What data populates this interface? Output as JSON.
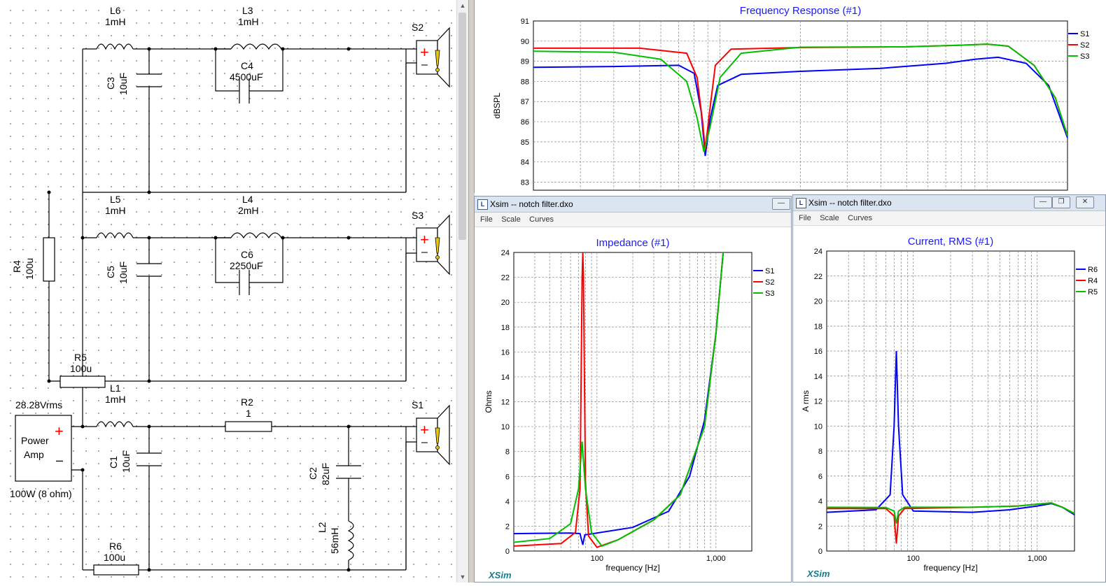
{
  "schematic": {
    "components": {
      "L6": {
        "name": "L6",
        "value": "1mH"
      },
      "L3": {
        "name": "L3",
        "value": "1mH"
      },
      "C3": {
        "name": "C3",
        "value": "10uF"
      },
      "C4": {
        "name": "C4",
        "value": "4500uF"
      },
      "S2": {
        "name": "S2"
      },
      "L5": {
        "name": "L5",
        "value": "1mH"
      },
      "L4": {
        "name": "L4",
        "value": "2mH"
      },
      "C5": {
        "name": "C5",
        "value": "10uF"
      },
      "C6": {
        "name": "C6",
        "value": "2250uF"
      },
      "S3": {
        "name": "S3"
      },
      "R4": {
        "name": "R4",
        "value": "100u"
      },
      "R5": {
        "name": "R5",
        "value": "100u"
      },
      "L1": {
        "name": "L1",
        "value": "1mH"
      },
      "R2": {
        "name": "R2",
        "value": "1"
      },
      "S1": {
        "name": "S1"
      },
      "C1": {
        "name": "C1",
        "value": "10uF"
      },
      "C2": {
        "name": "C2",
        "value": "82uF"
      },
      "L2": {
        "name": "L2",
        "value": "56mH"
      },
      "R6": {
        "name": "R6",
        "value": "100u"
      }
    },
    "amp": {
      "voltage": "28.28Vrms",
      "label_line1": "Power",
      "label_line2": "Amp",
      "rating": "100W (8 ohm)",
      "plus": "+",
      "minus": "–"
    },
    "speaker_symbols": {
      "plus": "+",
      "minus": "–",
      "warn": "!"
    }
  },
  "colors": {
    "S1": "#0000ff",
    "S2": "#ff0000",
    "S3": "#00c000",
    "R6": "#0000ff",
    "R4": "#ff0000",
    "R5": "#00c000",
    "title": "#1a1aff"
  },
  "freq_window": {
    "chart_data": {
      "type": "line",
      "title": "Frequency Response (#1)",
      "ylabel": "dBSPL",
      "x_scale": "log",
      "ylim": [
        82.6,
        91
      ],
      "yticks": [
        "91",
        "90",
        "89",
        "88",
        "87",
        "86",
        "85",
        "84",
        "83"
      ],
      "series": [
        {
          "name": "S1",
          "points": [
            [
              20,
              88.7
            ],
            [
              40,
              88.74
            ],
            [
              70,
              88.8
            ],
            [
              80,
              88.4
            ],
            [
              85,
              86.5
            ],
            [
              88,
              84.3
            ],
            [
              92,
              86.2
            ],
            [
              98,
              87.8
            ],
            [
              120,
              88.35
            ],
            [
              200,
              88.5
            ],
            [
              400,
              88.65
            ],
            [
              700,
              88.9
            ],
            [
              900,
              89.1
            ],
            [
              1100,
              89.2
            ],
            [
              1400,
              88.9
            ],
            [
              1700,
              87.8
            ],
            [
              2000,
              85.2
            ]
          ]
        },
        {
          "name": "S2",
          "points": [
            [
              20,
              89.65
            ],
            [
              50,
              89.65
            ],
            [
              75,
              89.4
            ],
            [
              82,
              88.2
            ],
            [
              86,
              86.0
            ],
            [
              88,
              84.6
            ],
            [
              91,
              86.3
            ],
            [
              96,
              88.8
            ],
            [
              110,
              89.6
            ],
            [
              200,
              89.68
            ],
            [
              500,
              89.72
            ],
            [
              800,
              89.8
            ],
            [
              1000,
              89.85
            ],
            [
              1200,
              89.75
            ],
            [
              1500,
              88.8
            ],
            [
              1800,
              87.2
            ],
            [
              2000,
              85.3
            ]
          ]
        },
        {
          "name": "S3",
          "points": [
            [
              20,
              89.5
            ],
            [
              40,
              89.45
            ],
            [
              60,
              89.1
            ],
            [
              75,
              88.0
            ],
            [
              82,
              86.2
            ],
            [
              87,
              84.5
            ],
            [
              92,
              85.8
            ],
            [
              100,
              88.2
            ],
            [
              120,
              89.4
            ],
            [
              200,
              89.7
            ],
            [
              500,
              89.72
            ],
            [
              800,
              89.8
            ],
            [
              1000,
              89.85
            ],
            [
              1200,
              89.75
            ],
            [
              1500,
              88.8
            ],
            [
              1800,
              87.2
            ],
            [
              2000,
              85.3
            ]
          ]
        }
      ]
    }
  },
  "impedance_window": {
    "title": "Xsim -- notch filter.dxo",
    "menu": [
      "File",
      "Scale",
      "Curves"
    ],
    "logo": "XSim",
    "chart_data": {
      "type": "line",
      "title": "Impedance (#1)",
      "ylabel": "Ohms",
      "xlabel": "frequency [Hz]",
      "x_scale": "log",
      "ylim": [
        0,
        24
      ],
      "yticks": [
        "0",
        "2",
        "4",
        "6",
        "8",
        "10",
        "12",
        "14",
        "16",
        "18",
        "20",
        "22",
        "24"
      ],
      "xticklabels": [
        "100",
        "1,000"
      ],
      "series": [
        {
          "name": "S1",
          "points": [
            [
              20,
              1.4
            ],
            [
              60,
              1.45
            ],
            [
              72,
              1.4
            ],
            [
              76,
              0.5
            ],
            [
              79,
              1.3
            ],
            [
              100,
              1.45
            ],
            [
              200,
              1.9
            ],
            [
              400,
              3.2
            ],
            [
              600,
              6.0
            ],
            [
              800,
              10.5
            ],
            [
              1000,
              17.5
            ],
            [
              1150,
              24
            ]
          ]
        },
        {
          "name": "S2",
          "points": [
            [
              20,
              0.4
            ],
            [
              50,
              0.6
            ],
            [
              66,
              1.5
            ],
            [
              72,
              5.0
            ],
            [
              75,
              22
            ],
            [
              76,
              24
            ],
            [
              77,
              22
            ],
            [
              80,
              5.5
            ],
            [
              85,
              1.2
            ],
            [
              100,
              0.3
            ],
            [
              150,
              0.9
            ],
            [
              300,
              2.5
            ],
            [
              500,
              4.5
            ],
            [
              800,
              10.0
            ],
            [
              1000,
              17.5
            ],
            [
              1150,
              24
            ]
          ]
        },
        {
          "name": "S3",
          "points": [
            [
              20,
              0.7
            ],
            [
              40,
              1.0
            ],
            [
              60,
              2.2
            ],
            [
              70,
              5.0
            ],
            [
              75,
              8.8
            ],
            [
              80,
              5.0
            ],
            [
              90,
              1.5
            ],
            [
              110,
              0.4
            ],
            [
              150,
              0.9
            ],
            [
              300,
              2.5
            ],
            [
              500,
              4.5
            ],
            [
              800,
              10.0
            ],
            [
              1000,
              17.5
            ],
            [
              1150,
              24
            ]
          ]
        }
      ]
    }
  },
  "current_window": {
    "title": "Xsim -- notch filter.dxo",
    "menu": [
      "File",
      "Scale",
      "Curves"
    ],
    "logo": "XSim",
    "chart_data": {
      "type": "line",
      "title": "Current, RMS (#1)",
      "ylabel": "A rms",
      "xlabel": "frequency [Hz]",
      "x_scale": "log",
      "ylim": [
        0,
        24
      ],
      "yticks": [
        "0",
        "2",
        "4",
        "6",
        "8",
        "10",
        "12",
        "14",
        "16",
        "18",
        "20",
        "22",
        "24"
      ],
      "xticklabels": [
        "100",
        "1,000"
      ],
      "series": [
        {
          "name": "R6",
          "points": [
            [
              20,
              3.1
            ],
            [
              50,
              3.3
            ],
            [
              65,
              4.5
            ],
            [
              70,
              10.0
            ],
            [
              73,
              16.0
            ],
            [
              76,
              10.0
            ],
            [
              82,
              4.5
            ],
            [
              100,
              3.2
            ],
            [
              300,
              3.1
            ],
            [
              600,
              3.3
            ],
            [
              1000,
              3.6
            ],
            [
              1300,
              3.8
            ],
            [
              1600,
              3.5
            ],
            [
              2000,
              2.9
            ]
          ]
        },
        {
          "name": "R4",
          "points": [
            [
              20,
              3.4
            ],
            [
              60,
              3.4
            ],
            [
              70,
              2.8
            ],
            [
              73,
              0.6
            ],
            [
              76,
              2.8
            ],
            [
              85,
              3.4
            ],
            [
              300,
              3.5
            ],
            [
              700,
              3.6
            ],
            [
              1000,
              3.75
            ],
            [
              1300,
              3.85
            ],
            [
              1600,
              3.5
            ],
            [
              2000,
              3.0
            ]
          ]
        },
        {
          "name": "R5",
          "points": [
            [
              20,
              3.5
            ],
            [
              60,
              3.48
            ],
            [
              70,
              3.2
            ],
            [
              73,
              2.2
            ],
            [
              76,
              3.2
            ],
            [
              85,
              3.5
            ],
            [
              300,
              3.5
            ],
            [
              700,
              3.6
            ],
            [
              1000,
              3.75
            ],
            [
              1300,
              3.85
            ],
            [
              1600,
              3.5
            ],
            [
              2000,
              3.0
            ]
          ]
        }
      ]
    }
  }
}
